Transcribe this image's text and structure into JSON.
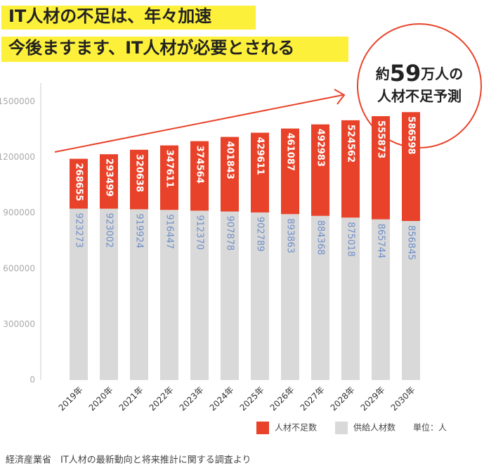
{
  "chart_data": {
    "type": "bar",
    "stacked": true,
    "title_lines": [
      "IT人材の不足は、年々加速",
      "今後ますます、IT人材が必要とされる"
    ],
    "annotation": {
      "prefix": "約",
      "number": "59",
      "suffix": "万人の",
      "line2": "人材不足予測"
    },
    "categories": [
      "2019年",
      "2020年",
      "2021年",
      "2022年",
      "2023年",
      "2024年",
      "2025年",
      "2026年",
      "2027年",
      "2028年",
      "2029年",
      "2030年"
    ],
    "series": [
      {
        "name": "供給人材数",
        "color": "#d9d9d9",
        "label_color": "#6f8fc9",
        "values": [
          923273,
          923002,
          919924,
          916447,
          912370,
          907878,
          902789,
          893863,
          884368,
          875018,
          865744,
          856845
        ]
      },
      {
        "name": "人材不足数",
        "color": "#e8432a",
        "label_color": "#ffffff",
        "values": [
          268655,
          293499,
          320638,
          347611,
          374564,
          401843,
          429611,
          461087,
          492983,
          524562,
          555873,
          586598
        ]
      }
    ],
    "ylim": [
      0,
      1600000
    ],
    "yticks": [
      0,
      300000,
      600000,
      900000,
      1200000,
      1500000
    ],
    "grid": false,
    "unit": "単位：人",
    "source": "経済産業省　IT人材の最新動向と将来推計に関する調査より"
  }
}
